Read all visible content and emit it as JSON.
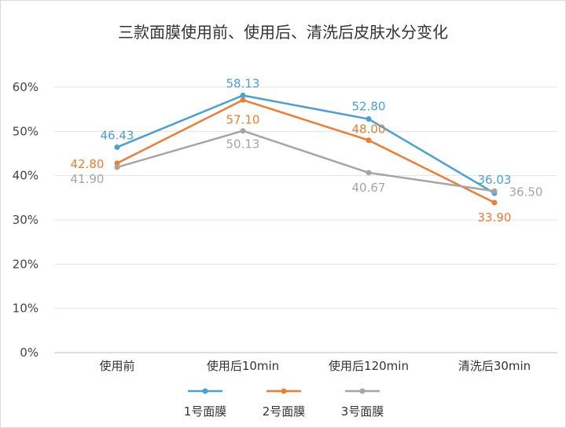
{
  "chart_data": {
    "type": "line",
    "title": "三款面膜使用前、使用后、清洗后皮肤水分变化",
    "categories": [
      "使用前",
      "使用后10min",
      "使用后120min",
      "清洗后30min"
    ],
    "ylim": [
      0,
      60
    ],
    "yticks": [
      0,
      10,
      20,
      30,
      40,
      50,
      60
    ],
    "ytick_labels": [
      "0%",
      "10%",
      "20%",
      "30%",
      "40%",
      "50%",
      "60%"
    ],
    "grid": true,
    "legend_position": "bottom",
    "series": [
      {
        "name": "1号面膜",
        "color": "#4a9fd4",
        "values": [
          46.43,
          58.13,
          52.8,
          36.03
        ],
        "labels": [
          "46.43",
          "58.13",
          "52.80",
          "36.03"
        ]
      },
      {
        "name": "2号面膜",
        "color": "#ed7d31",
        "values": [
          42.8,
          57.1,
          48.0,
          33.9
        ],
        "labels": [
          "42.80",
          "57.10",
          "48.00",
          "33.90"
        ]
      },
      {
        "name": "3号面膜",
        "color": "#a5a5a5",
        "values": [
          41.9,
          50.13,
          40.67,
          36.5
        ],
        "labels": [
          "41.90",
          "50.13",
          "40.67",
          "36.50"
        ]
      }
    ]
  }
}
